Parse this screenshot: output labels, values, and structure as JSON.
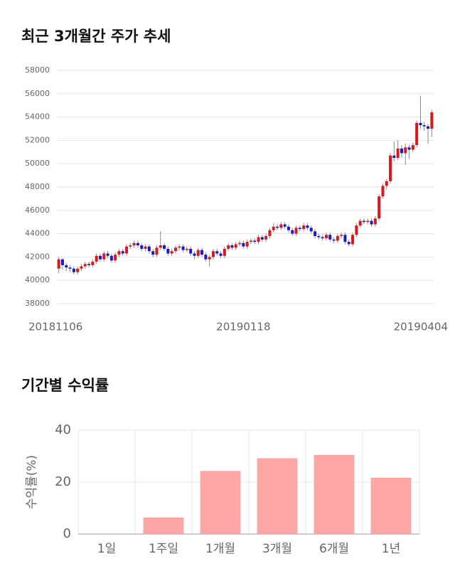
{
  "chart_data": [
    {
      "type": "candlestick",
      "title": "최근 3개월간 주가 추세",
      "categories": [
        "20181106",
        null,
        null,
        null,
        null,
        null,
        null,
        null,
        null,
        null,
        null,
        null,
        null,
        null,
        null,
        null,
        null,
        null,
        null,
        null,
        null,
        null,
        null,
        null,
        null,
        null,
        null,
        null,
        null,
        null,
        null,
        null,
        null,
        null,
        null,
        null,
        null,
        null,
        null,
        null,
        null,
        null,
        null,
        null,
        null,
        null,
        null,
        null,
        null,
        "20190118",
        null,
        null,
        null,
        null,
        null,
        null,
        null,
        null,
        null,
        null,
        null,
        null,
        null,
        null,
        null,
        null,
        null,
        null,
        null,
        null,
        null,
        null,
        null,
        null,
        null,
        null,
        null,
        null,
        null,
        null,
        null,
        null,
        null,
        null,
        null,
        null,
        null,
        null,
        null,
        null,
        null,
        null,
        null,
        null,
        null,
        null,
        null,
        null,
        null,
        "20190404"
      ],
      "open": [
        41000,
        41800,
        41300,
        41100,
        41000,
        40700,
        41000,
        41200,
        41400,
        41300,
        41600,
        42100,
        41800,
        42300,
        42100,
        41700,
        42200,
        42500,
        42300,
        42900,
        43000,
        43200,
        43000,
        42700,
        42900,
        42500,
        42200,
        42800,
        43000,
        42700,
        42300,
        42500,
        42800,
        42900,
        42600,
        42700,
        42300,
        42100,
        42600,
        42200,
        41800,
        42000,
        42500,
        42300,
        42100,
        42700,
        43000,
        42800,
        43100,
        43200,
        42900,
        43300,
        43400,
        43300,
        43700,
        43500,
        43800,
        44300,
        44600,
        44500,
        44800,
        44600,
        44300,
        44000,
        44500,
        44400,
        44700,
        44500,
        44200,
        43800,
        43700,
        43600,
        43900,
        43500,
        43400,
        43800,
        43900,
        43300,
        43100,
        43900,
        44700,
        45100,
        45000,
        45100,
        44800,
        45300,
        47200,
        48100,
        48500,
        50700,
        50500,
        51300,
        50900,
        51400,
        51200,
        51600,
        53500,
        53300,
        53200,
        53000
      ],
      "high": [
        42000,
        41900,
        41500,
        41300,
        41200,
        41200,
        41400,
        41600,
        41600,
        41800,
        42300,
        42300,
        42500,
        42500,
        42300,
        42400,
        42700,
        42700,
        43100,
        43200,
        43400,
        43400,
        43200,
        43100,
        43100,
        42700,
        43000,
        44200,
        43200,
        42900,
        42700,
        43000,
        43100,
        43100,
        42900,
        42900,
        42500,
        42800,
        42800,
        42400,
        42200,
        42700,
        42700,
        42500,
        42900,
        43200,
        43200,
        43300,
        43400,
        43400,
        43500,
        43600,
        43600,
        43900,
        43900,
        44000,
        44500,
        44900,
        44800,
        45000,
        45000,
        44800,
        44500,
        44700,
        44700,
        44900,
        44900,
        44700,
        44400,
        44000,
        43900,
        44100,
        44100,
        43700,
        44000,
        44100,
        44100,
        43500,
        44100,
        44900,
        45300,
        45300,
        45300,
        45300,
        45500,
        47400,
        48300,
        48700,
        50900,
        51900,
        52000,
        51600,
        51700,
        51600,
        51800,
        53700,
        55800,
        53600,
        53400,
        54600
      ],
      "low": [
        40600,
        40900,
        40800,
        40700,
        40500,
        40500,
        40800,
        41000,
        41100,
        41100,
        41400,
        41600,
        41600,
        41900,
        41500,
        41500,
        42000,
        42100,
        42100,
        42700,
        42800,
        42800,
        42500,
        42500,
        42300,
        42000,
        42000,
        42600,
        42500,
        42100,
        42100,
        42300,
        42600,
        42400,
        42400,
        42100,
        41800,
        41900,
        42000,
        41600,
        41200,
        41800,
        42100,
        41900,
        41900,
        42500,
        42600,
        42600,
        42900,
        42700,
        42700,
        43100,
        43100,
        43100,
        43300,
        43300,
        43600,
        44100,
        44300,
        44300,
        44400,
        44100,
        43800,
        43800,
        44200,
        44200,
        44300,
        44000,
        43600,
        43500,
        43400,
        43400,
        43300,
        43200,
        43200,
        43600,
        43100,
        42900,
        42900,
        43700,
        44500,
        44800,
        44800,
        44600,
        44600,
        45100,
        47000,
        47800,
        48300,
        50200,
        50300,
        50500,
        49900,
        50400,
        51000,
        51400,
        53000,
        52800,
        51700,
        52300
      ],
      "close": [
        41800,
        41300,
        41100,
        41000,
        40700,
        41000,
        41200,
        41400,
        41300,
        41600,
        42100,
        41800,
        42300,
        42100,
        41700,
        42200,
        42500,
        42300,
        42900,
        43000,
        43200,
        43000,
        42700,
        42900,
        42500,
        42200,
        42800,
        43000,
        42700,
        42300,
        42500,
        42800,
        42900,
        42600,
        42700,
        42300,
        42100,
        42600,
        42200,
        41800,
        42000,
        42500,
        42300,
        42100,
        42700,
        43000,
        42800,
        43100,
        43200,
        42900,
        43300,
        43400,
        43300,
        43700,
        43500,
        43800,
        44300,
        44600,
        44500,
        44800,
        44600,
        44300,
        44000,
        44500,
        44400,
        44700,
        44500,
        44200,
        43800,
        43700,
        43600,
        43900,
        43500,
        43400,
        43800,
        43900,
        43300,
        43100,
        43900,
        44700,
        45100,
        45000,
        45100,
        44800,
        45300,
        47200,
        48100,
        48500,
        50700,
        50500,
        51300,
        50900,
        51400,
        51200,
        51600,
        53500,
        53300,
        53200,
        53000,
        54400
      ],
      "up_color": "#d7191c",
      "down_color": "#1a1ac8",
      "ylim": [
        38000,
        58000
      ],
      "yticks": [
        38000,
        40000,
        42000,
        44000,
        46000,
        48000,
        50000,
        52000,
        54000,
        56000,
        58000
      ],
      "grid": true
    },
    {
      "type": "bar",
      "title": "기간별 수익률",
      "y_label": "수익률(%)",
      "categories": [
        "1일",
        "1주일",
        "1개월",
        "3개월",
        "6개월",
        "1년"
      ],
      "values": [
        0,
        6.3,
        24.2,
        29.1,
        30.4,
        21.6
      ],
      "color": "#ffa6a6",
      "ylim": [
        0,
        40
      ],
      "yticks": [
        0,
        20,
        40
      ],
      "grid": true
    }
  ]
}
